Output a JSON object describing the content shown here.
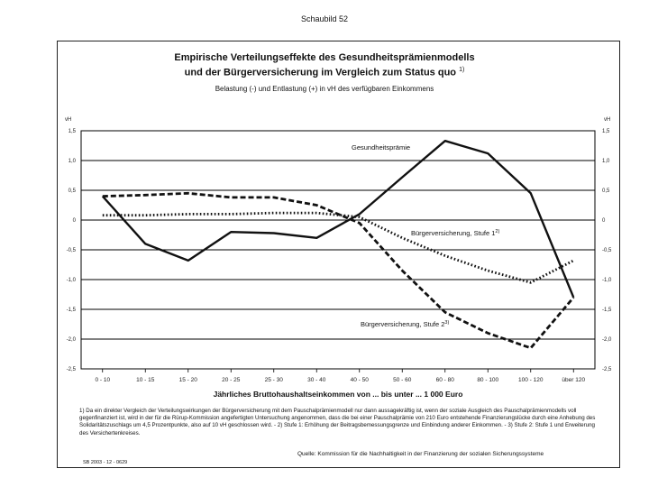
{
  "page_label": "Schaubild 52",
  "title_line1": "Empirische Verteilungseffekte des Gesundheitsprämienmodells",
  "title_line2": "und der Bürgerversicherung im Vergleich zum Status quo",
  "title_footnote_mark": "1)",
  "subtitle": "Belastung (-) und Entlastung (+) in vH des verfügbaren Einkommens",
  "footnote": "1) Da ein direkter Vergleich der Verteilungswirkungen der Bürgerversicherung mit dem Pauschalprämienmodell nur dann aussagekräftig ist, wenn der soziale Ausgleich des Pauschalprämienmodells voll gegenfinanziert ist, wird in der für die Rürup-Kommission angefertigten Untersuchung angenommen, dass die bei einer Pauschalprämie von 210 Euro entstehende Finanzierungslücke durch eine Anhebung des Solidaritätszuschlags um 4,5 Prozentpunkte, also auf 10 vH geschlossen wird. - 2) Stufe 1: Erhöhung der Beitragsbemessungsgrenze und Einbindung anderer Einkommen. - 3) Stufe 2: Stufe 1 und Erweiterung des Versichertenkreises.",
  "source": "Quelle: Kommission für die Nachhaltigkeit in der Finanzierung der sozialen Sicherungssysteme",
  "code": "SB 2003 - 12 - 0629",
  "chart_data": {
    "type": "line",
    "xlabel": "Jährliches Bruttohaushaltseinkommen von ... bis unter ... 1 000 Euro",
    "ylabel_left": "vH",
    "ylabel_right": "vH",
    "ylim": [
      -2.5,
      1.5
    ],
    "yticks": [
      1.5,
      1.0,
      0.5,
      0,
      -0.5,
      -1.0,
      -1.5,
      -2.0,
      -2.5
    ],
    "ytick_labels": [
      "1,5",
      "1,0",
      "0,5",
      "0",
      "-0,5",
      "-1,0",
      "-1,5",
      "-2,0",
      "-2,5"
    ],
    "grid": "horizontal",
    "categories": [
      "0 - 10",
      "10 - 15",
      "15 - 20",
      "20 - 25",
      "25 - 30",
      "30 - 40",
      "40 - 50",
      "50 - 60",
      "60 - 80",
      "80 - 100",
      "100 - 120",
      "über 120"
    ],
    "series": [
      {
        "name": "Gesundheitsprämie",
        "style": "solid",
        "values": [
          0.4,
          -0.4,
          -0.68,
          -0.2,
          -0.22,
          -0.3,
          0.1,
          0.72,
          1.33,
          1.12,
          0.45,
          -1.3
        ]
      },
      {
        "name": "Bürgerversicherung, Stufe 1",
        "footnote_mark": "2)",
        "style": "dotted",
        "values": [
          0.08,
          0.08,
          0.1,
          0.1,
          0.12,
          0.12,
          0.05,
          -0.3,
          -0.6,
          -0.85,
          -1.05,
          -0.68
        ]
      },
      {
        "name": "Bürgerversicherung, Stufe 2",
        "footnote_mark": "3)",
        "style": "dashed",
        "values": [
          0.4,
          0.42,
          0.45,
          0.38,
          0.38,
          0.25,
          -0.05,
          -0.85,
          -1.55,
          -1.9,
          -2.15,
          -1.3
        ]
      }
    ]
  }
}
